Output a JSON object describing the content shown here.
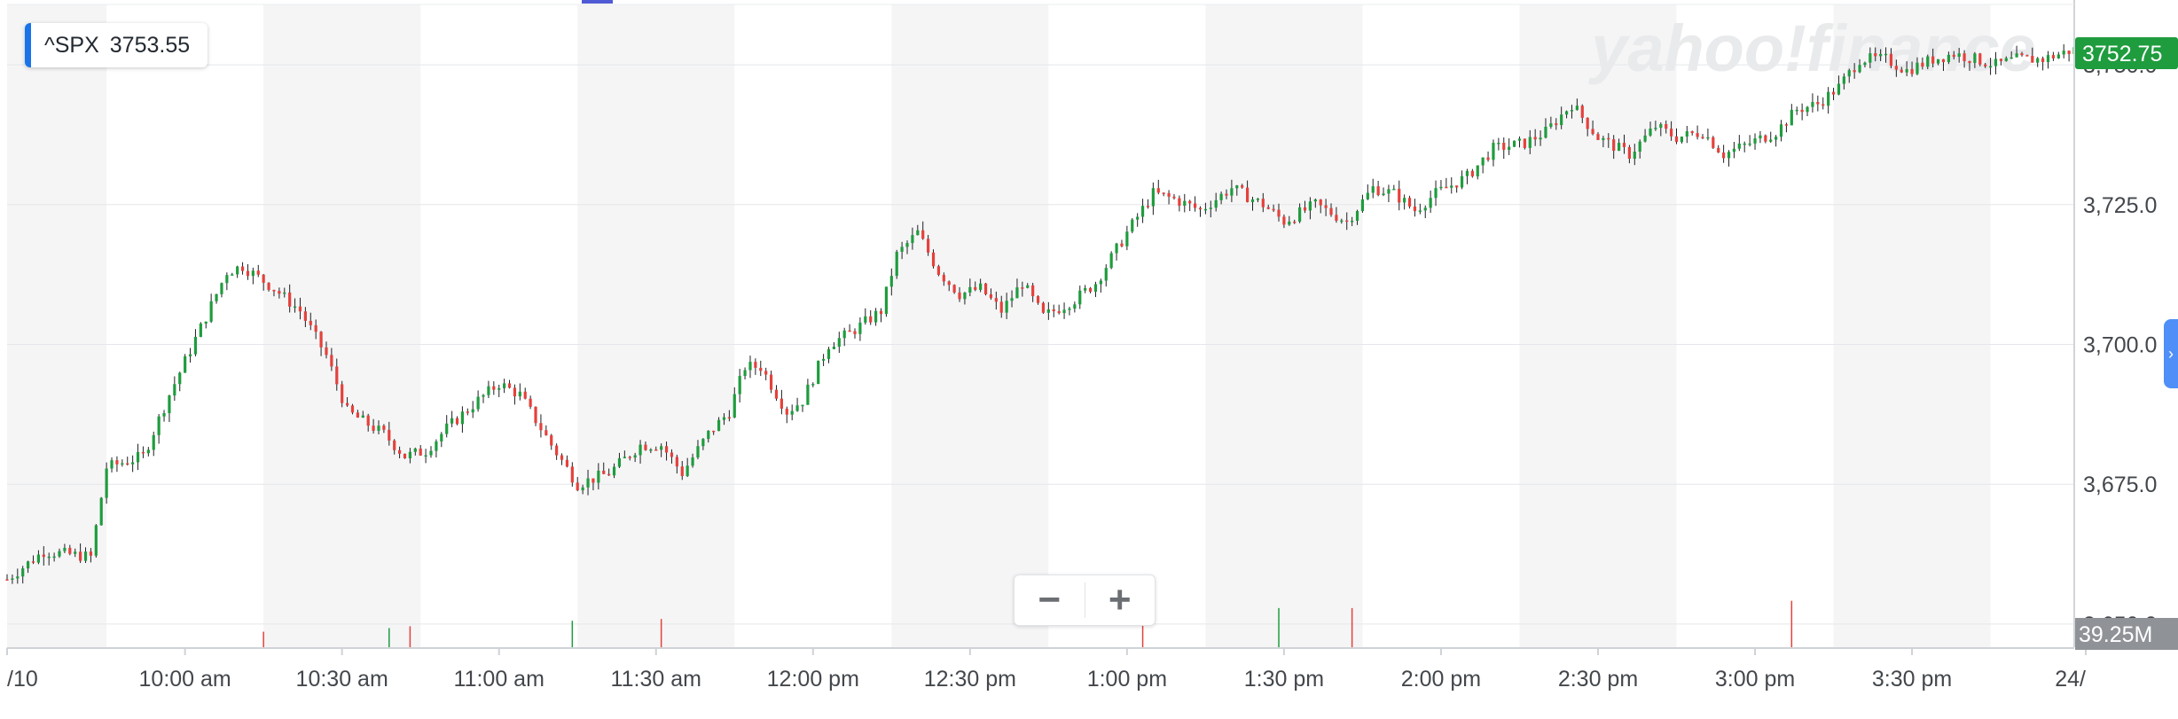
{
  "ticker": {
    "symbol": "^SPX",
    "price": "3753.55"
  },
  "watermark": "yahoo!finance",
  "last_price_tag": "3752.75",
  "volume_tag": "39.25M",
  "zoom": {
    "minus": "−",
    "plus": "+"
  },
  "side_tab_icon": "chevron-right-icon",
  "colors": {
    "up": "#1f9c3e",
    "down": "#e5413c",
    "price_tag": "#1f9c3e",
    "volume_tag": "#8f9297",
    "accent": "#1a73e8"
  },
  "chart_data": {
    "type": "candlestick",
    "x_tick_labels": [
      "/10",
      "10:00 am",
      "10:30 am",
      "11:00 am",
      "11:30 am",
      "12:00 pm",
      "12:30 pm",
      "1:00 pm",
      "1:30 pm",
      "2:00 pm",
      "2:30 pm",
      "3:00 pm",
      "3:30 pm",
      "24/"
    ],
    "y_tick_labels": [
      "3,750.0",
      "3,725.0",
      "3,700.0",
      "3,675.0",
      "3,650.0"
    ],
    "y_ticks": [
      3750,
      3725,
      3700,
      3675,
      3650
    ],
    "ylim": [
      3645.7,
      3760.8
    ],
    "xlim_minutes_after_0930": [
      -4,
      391
    ],
    "grid": true,
    "price_path": [
      [
        -4,
        3658
      ],
      [
        3,
        3663
      ],
      [
        12,
        3662
      ],
      [
        15,
        3678
      ],
      [
        22,
        3680
      ],
      [
        27,
        3691
      ],
      [
        33,
        3703
      ],
      [
        38,
        3713
      ],
      [
        41,
        3714
      ],
      [
        47,
        3710
      ],
      [
        52,
        3706
      ],
      [
        57,
        3698
      ],
      [
        61,
        3688
      ],
      [
        68,
        3684
      ],
      [
        72,
        3680
      ],
      [
        76,
        3681
      ],
      [
        80,
        3685
      ],
      [
        86,
        3690
      ],
      [
        90,
        3693
      ],
      [
        94,
        3691
      ],
      [
        100,
        3682
      ],
      [
        105,
        3675
      ],
      [
        111,
        3677
      ],
      [
        117,
        3682
      ],
      [
        121,
        3682
      ],
      [
        125,
        3677
      ],
      [
        130,
        3684
      ],
      [
        134,
        3688
      ],
      [
        137,
        3696
      ],
      [
        140,
        3696
      ],
      [
        145,
        3688
      ],
      [
        148,
        3690
      ],
      [
        153,
        3700
      ],
      [
        157,
        3702
      ],
      [
        160,
        3704
      ],
      [
        163,
        3706
      ],
      [
        166,
        3716
      ],
      [
        170,
        3720
      ],
      [
        174,
        3713
      ],
      [
        178,
        3709
      ],
      [
        182,
        3710
      ],
      [
        186,
        3706
      ],
      [
        190,
        3711
      ],
      [
        194,
        3705
      ],
      [
        200,
        3708
      ],
      [
        204,
        3711
      ],
      [
        210,
        3720
      ],
      [
        215,
        3727
      ],
      [
        219,
        3726
      ],
      [
        224,
        3724
      ],
      [
        230,
        3728
      ],
      [
        236,
        3725
      ],
      [
        240,
        3722
      ],
      [
        246,
        3725
      ],
      [
        252,
        3722
      ],
      [
        257,
        3728
      ],
      [
        261,
        3727
      ],
      [
        265,
        3724
      ],
      [
        269,
        3727
      ],
      [
        275,
        3730
      ],
      [
        280,
        3735
      ],
      [
        286,
        3736
      ],
      [
        290,
        3738
      ],
      [
        295,
        3743
      ],
      [
        300,
        3737
      ],
      [
        306,
        3734
      ],
      [
        311,
        3739
      ],
      [
        315,
        3737
      ],
      [
        320,
        3738
      ],
      [
        324,
        3734
      ],
      [
        329,
        3736
      ],
      [
        334,
        3738
      ],
      [
        338,
        3742
      ],
      [
        342,
        3743
      ],
      [
        346,
        3746
      ],
      [
        350,
        3751
      ],
      [
        355,
        3751
      ],
      [
        359,
        3749
      ],
      [
        364,
        3751
      ],
      [
        368,
        3752
      ],
      [
        372,
        3751
      ],
      [
        376,
        3750
      ],
      [
        380,
        3751
      ],
      [
        385,
        3751
      ],
      [
        391,
        3752.75
      ]
    ],
    "volume_spikes": [
      {
        "t": 45,
        "value_m": 9,
        "dir": "down"
      },
      {
        "t": 69,
        "value_m": 11,
        "dir": "up"
      },
      {
        "t": 73,
        "value_m": 12,
        "dir": "down"
      },
      {
        "t": 104,
        "value_m": 15,
        "dir": "up"
      },
      {
        "t": 121,
        "value_m": 16,
        "dir": "down"
      },
      {
        "t": 213,
        "value_m": 20,
        "dir": "down"
      },
      {
        "t": 239,
        "value_m": 22,
        "dir": "up"
      },
      {
        "t": 253,
        "value_m": 22,
        "dir": "down"
      },
      {
        "t": 337,
        "value_m": 26,
        "dir": "down"
      }
    ],
    "volume_max_m": 39.25
  }
}
